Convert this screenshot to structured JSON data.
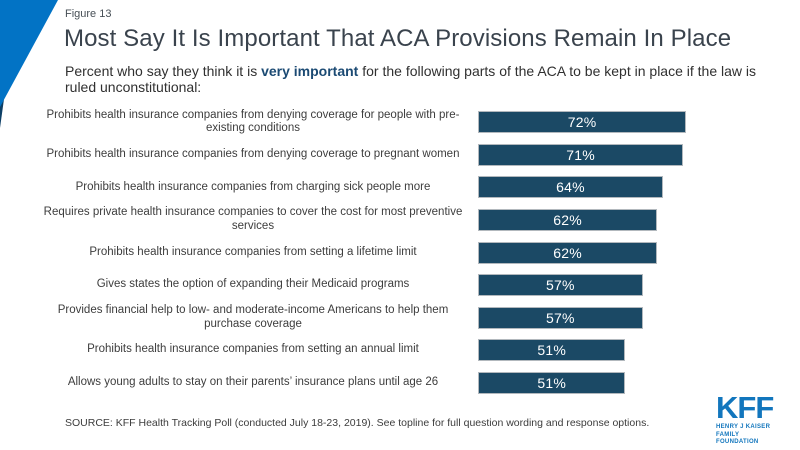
{
  "figure_label": "Figure 13",
  "title": "Most Say It Is Important That ACA Provisions Remain In Place",
  "subtitle": {
    "prefix": "Percent who say they think it is ",
    "emphasis": "very important",
    "suffix": " for the following parts of the ACA to be kept in place if the law is ruled unconstitutional:"
  },
  "chart_data": {
    "type": "bar",
    "orientation": "horizontal",
    "categories": [
      "Prohibits health insurance companies from denying coverage for people with pre-existing conditions",
      "Prohibits health insurance companies from denying coverage to pregnant women",
      "Prohibits health insurance companies from charging sick people more",
      "Requires private health insurance companies to cover the cost for most preventive services",
      "Prohibits health insurance companies from setting a lifetime limit",
      "Gives states the option of expanding their Medicaid programs",
      "Provides financial help to low- and moderate-income Americans to help them purchase coverage",
      "Prohibits health insurance companies from setting an annual limit",
      "Allows young adults to stay on their parents’ insurance plans until age 26"
    ],
    "values": [
      72,
      71,
      64,
      62,
      62,
      57,
      57,
      51,
      51
    ],
    "value_labels": [
      "72%",
      "71%",
      "64%",
      "62%",
      "62%",
      "57%",
      "57%",
      "51%",
      "51%"
    ],
    "xlim": [
      0,
      100
    ],
    "grid": false,
    "legend": false,
    "data_label_position": "inside-center"
  },
  "source": "SOURCE: KFF Health Tracking Poll (conducted July 18-23, 2019). See topline for full question wording and response options.",
  "logo": {
    "text": "KFF",
    "line1": "HENRY J KAISER",
    "line2": "FAMILY FOUNDATION"
  },
  "colors": {
    "bar": "#1b4965",
    "bar_border": "#b2b8bd",
    "bar_value_text": "#ffffff",
    "corner_triangle": "#0273c5",
    "corner_triangle_dark": "#0d3f66",
    "title_text": "#3a434d",
    "subtitle_emphasis": "#1b4a73",
    "logo_blue": "#1276bd",
    "background": "#ffffff"
  }
}
